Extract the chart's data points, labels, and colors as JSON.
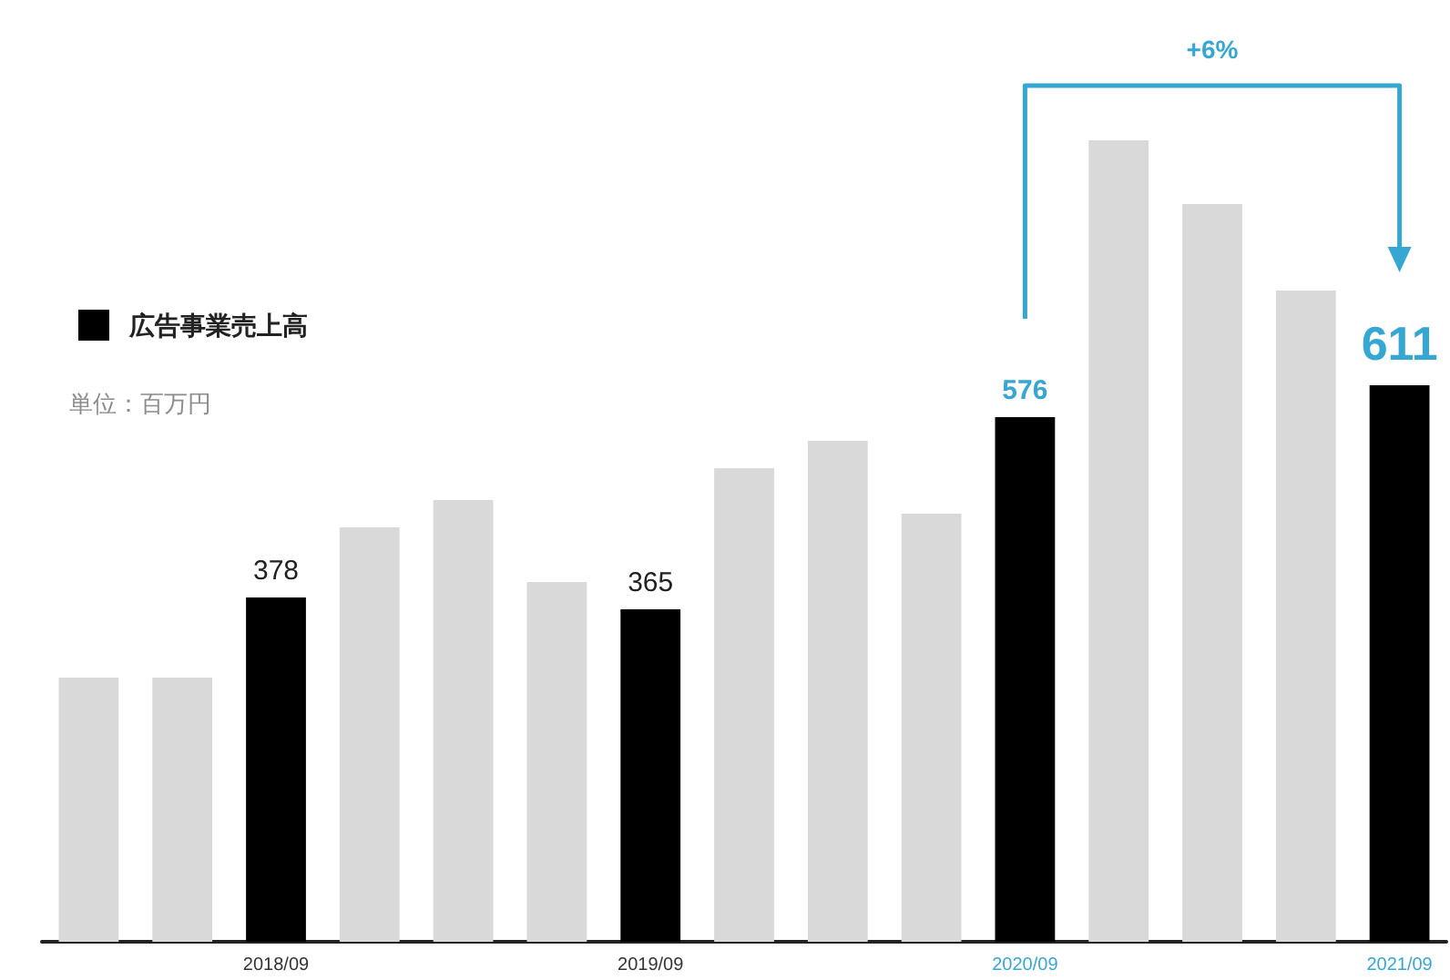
{
  "chart_data": {
    "type": "bar",
    "categories": [
      null,
      null,
      "2018/09",
      null,
      null,
      null,
      "2019/09",
      null,
      null,
      null,
      "2020/09",
      null,
      null,
      null,
      "2021/09"
    ],
    "series": [
      {
        "color": "#d9d9d9",
        "values": [
          290,
          290,
          null,
          455,
          485,
          395,
          null,
          520,
          550,
          470,
          null,
          880,
          810,
          715,
          null
        ]
      },
      {
        "name": "広告事業売上高",
        "color": "#000000",
        "values": [
          null,
          null,
          378,
          null,
          null,
          null,
          365,
          null,
          null,
          null,
          576,
          null,
          null,
          null,
          611
        ],
        "value_labels": [
          null,
          null,
          "378",
          null,
          null,
          null,
          "365",
          null,
          null,
          null,
          "576",
          null,
          null,
          null,
          "611"
        ]
      }
    ],
    "annotations": [
      "単位：百万円",
      "+6%"
    ],
    "legend": "top left",
    "tick_labels": "x"
  }
}
